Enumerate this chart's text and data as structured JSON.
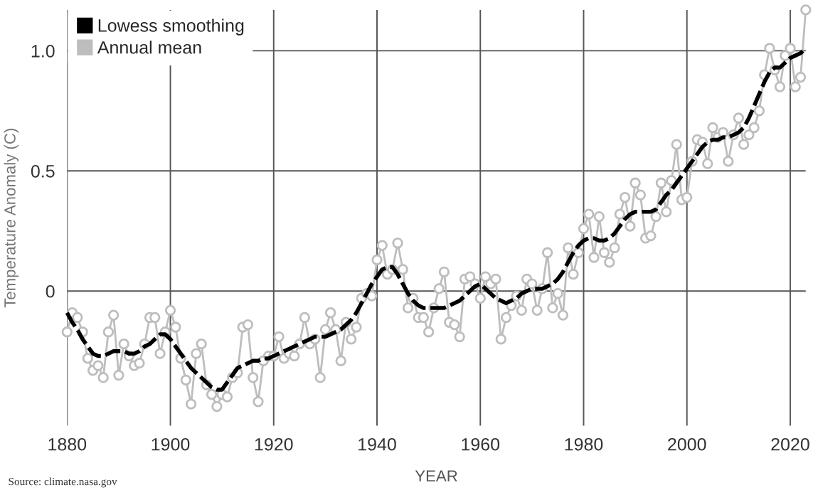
{
  "chart_data": {
    "type": "line",
    "xlabel": "YEAR",
    "ylabel": "Temperature Anomaly (C)",
    "x": [
      1880,
      1881,
      1882,
      1883,
      1884,
      1885,
      1886,
      1887,
      1888,
      1889,
      1890,
      1891,
      1892,
      1893,
      1894,
      1895,
      1896,
      1897,
      1898,
      1899,
      1900,
      1901,
      1902,
      1903,
      1904,
      1905,
      1906,
      1907,
      1908,
      1909,
      1910,
      1911,
      1912,
      1913,
      1914,
      1915,
      1916,
      1917,
      1918,
      1919,
      1920,
      1921,
      1922,
      1923,
      1924,
      1925,
      1926,
      1927,
      1928,
      1929,
      1930,
      1931,
      1932,
      1933,
      1934,
      1935,
      1936,
      1937,
      1938,
      1939,
      1940,
      1941,
      1942,
      1943,
      1944,
      1945,
      1946,
      1947,
      1948,
      1949,
      1950,
      1951,
      1952,
      1953,
      1954,
      1955,
      1956,
      1957,
      1958,
      1959,
      1960,
      1961,
      1962,
      1963,
      1964,
      1965,
      1966,
      1967,
      1968,
      1969,
      1970,
      1971,
      1972,
      1973,
      1974,
      1975,
      1976,
      1977,
      1978,
      1979,
      1980,
      1981,
      1982,
      1983,
      1984,
      1985,
      1986,
      1987,
      1988,
      1989,
      1990,
      1991,
      1992,
      1993,
      1994,
      1995,
      1996,
      1997,
      1998,
      1999,
      2000,
      2001,
      2002,
      2003,
      2004,
      2005,
      2006,
      2007,
      2008,
      2009,
      2010,
      2011,
      2012,
      2013,
      2014,
      2015,
      2016,
      2017,
      2018,
      2019,
      2020,
      2021,
      2022,
      2023
    ],
    "series": [
      {
        "name": "Annual mean",
        "color": "#bdbdbd",
        "marker": "circle",
        "line_style": "solid",
        "values": [
          -0.17,
          -0.09,
          -0.11,
          -0.17,
          -0.28,
          -0.33,
          -0.31,
          -0.36,
          -0.17,
          -0.1,
          -0.35,
          -0.22,
          -0.27,
          -0.31,
          -0.3,
          -0.22,
          -0.11,
          -0.11,
          -0.26,
          -0.17,
          -0.08,
          -0.15,
          -0.28,
          -0.37,
          -0.47,
          -0.26,
          -0.22,
          -0.39,
          -0.43,
          -0.48,
          -0.43,
          -0.44,
          -0.36,
          -0.34,
          -0.15,
          -0.14,
          -0.36,
          -0.46,
          -0.29,
          -0.27,
          -0.27,
          -0.19,
          -0.28,
          -0.26,
          -0.27,
          -0.22,
          -0.11,
          -0.22,
          -0.2,
          -0.36,
          -0.16,
          -0.09,
          -0.16,
          -0.29,
          -0.13,
          -0.2,
          -0.15,
          -0.03,
          -0.01,
          -0.02,
          0.13,
          0.19,
          0.07,
          0.09,
          0.2,
          0.09,
          -0.07,
          -0.03,
          -0.11,
          -0.11,
          -0.17,
          -0.07,
          0.01,
          0.08,
          -0.13,
          -0.14,
          -0.19,
          0.05,
          0.06,
          0.03,
          -0.03,
          0.06,
          0.03,
          0.05,
          -0.2,
          -0.11,
          -0.06,
          -0.02,
          -0.08,
          0.05,
          0.03,
          -0.08,
          0.01,
          0.16,
          -0.07,
          -0.01,
          -0.1,
          0.18,
          0.07,
          0.16,
          0.26,
          0.32,
          0.14,
          0.31,
          0.16,
          0.12,
          0.18,
          0.32,
          0.39,
          0.27,
          0.45,
          0.4,
          0.22,
          0.23,
          0.31,
          0.45,
          0.33,
          0.46,
          0.61,
          0.38,
          0.39,
          0.54,
          0.63,
          0.62,
          0.53,
          0.68,
          0.64,
          0.66,
          0.54,
          0.65,
          0.72,
          0.61,
          0.65,
          0.68,
          0.75,
          0.9,
          1.01,
          0.92,
          0.85,
          0.98,
          1.01,
          0.85,
          0.89,
          1.17
        ]
      },
      {
        "name": "Lowess smoothing",
        "color": "#000000",
        "marker": "none",
        "line_style": "dashed",
        "values": [
          -0.09,
          -0.13,
          -0.16,
          -0.2,
          -0.23,
          -0.26,
          -0.27,
          -0.27,
          -0.26,
          -0.25,
          -0.25,
          -0.25,
          -0.26,
          -0.26,
          -0.25,
          -0.23,
          -0.22,
          -0.2,
          -0.18,
          -0.18,
          -0.2,
          -0.23,
          -0.26,
          -0.29,
          -0.32,
          -0.34,
          -0.36,
          -0.38,
          -0.4,
          -0.41,
          -0.41,
          -0.38,
          -0.35,
          -0.32,
          -0.31,
          -0.3,
          -0.29,
          -0.29,
          -0.28,
          -0.28,
          -0.27,
          -0.26,
          -0.25,
          -0.24,
          -0.23,
          -0.22,
          -0.21,
          -0.2,
          -0.19,
          -0.19,
          -0.19,
          -0.18,
          -0.17,
          -0.16,
          -0.14,
          -0.12,
          -0.09,
          -0.05,
          -0.01,
          0.03,
          0.06,
          0.09,
          0.1,
          0.1,
          0.07,
          0.03,
          -0.01,
          -0.04,
          -0.06,
          -0.07,
          -0.07,
          -0.07,
          -0.07,
          -0.07,
          -0.06,
          -0.05,
          -0.04,
          -0.02,
          0.0,
          0.02,
          0.03,
          0.01,
          -0.01,
          -0.03,
          -0.04,
          -0.05,
          -0.04,
          -0.03,
          -0.01,
          0.0,
          0.01,
          0.01,
          0.01,
          0.02,
          0.03,
          0.05,
          0.08,
          0.12,
          0.16,
          0.19,
          0.21,
          0.22,
          0.22,
          0.21,
          0.21,
          0.22,
          0.24,
          0.27,
          0.3,
          0.32,
          0.33,
          0.33,
          0.33,
          0.33,
          0.34,
          0.37,
          0.4,
          0.42,
          0.45,
          0.48,
          0.51,
          0.54,
          0.57,
          0.6,
          0.62,
          0.63,
          0.63,
          0.64,
          0.64,
          0.65,
          0.66,
          0.68,
          0.72,
          0.77,
          0.82,
          0.87,
          0.91,
          0.93,
          0.93,
          0.95,
          0.97,
          0.98,
          0.99,
          1.01
        ]
      }
    ],
    "xlim": [
      1880,
      2023
    ],
    "ylim": [
      -0.56,
      1.17
    ],
    "xticks": [
      1880,
      1900,
      1920,
      1940,
      1960,
      1980,
      2000,
      2020
    ],
    "yticks": [
      0,
      0.5,
      {
        "value": 1.0,
        "label": "1.0"
      }
    ],
    "grid": true,
    "legend": "top left",
    "annotations": [
      "Source: climate.nasa.gov"
    ]
  }
}
